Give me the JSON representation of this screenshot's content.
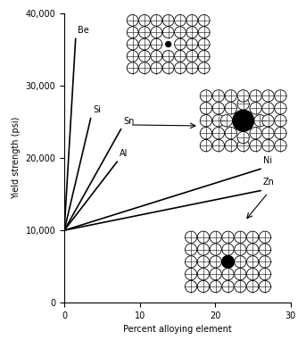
{
  "chart_data": {
    "type": "line",
    "x_label": "Percent alloying element",
    "y_label": "Yield strength (psi)",
    "series": [
      {
        "name": "Be",
        "color": "#000000",
        "x": [
          0,
          1.5
        ],
        "values": [
          10000,
          36500
        ]
      },
      {
        "name": "Si",
        "color": "#000000",
        "x": [
          0,
          3.5
        ],
        "values": [
          10000,
          25500
        ]
      },
      {
        "name": "Sn",
        "color": "#000000",
        "x": [
          0,
          7.5
        ],
        "values": [
          10000,
          24000
        ]
      },
      {
        "name": "Al",
        "color": "#000000",
        "x": [
          0,
          7
        ],
        "values": [
          10000,
          19500
        ]
      },
      {
        "name": "Ni",
        "color": "#000000",
        "x": [
          0,
          26
        ],
        "values": [
          10000,
          18500
        ]
      },
      {
        "name": "Zn",
        "color": "#000000",
        "x": [
          0,
          26
        ],
        "values": [
          10000,
          15500
        ]
      }
    ],
    "xlim": [
      0,
      30
    ],
    "xticks": [
      0,
      10,
      20,
      30
    ],
    "ylim": [
      0,
      40000
    ],
    "yticks": [
      0,
      {
        "value": 10000,
        "label": "10,000"
      },
      {
        "value": 20000,
        "label": "20,000"
      },
      {
        "value": 30000,
        "label": "30,000"
      },
      {
        "value": 40000,
        "label": "40,000"
      }
    ],
    "grid": false
  }
}
